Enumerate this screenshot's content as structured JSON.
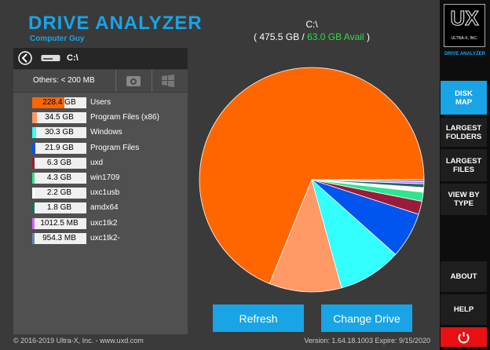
{
  "header": {
    "title": "DRIVE ANALYZER",
    "subtitle": "Computer Guy"
  },
  "drive_bar": {
    "drive": "C:\\"
  },
  "filter_row": {
    "others": "Others: < 200 MB"
  },
  "chart_data": {
    "type": "pie",
    "title": "C:\\",
    "capacity_text": "( 475.5 GB /",
    "available_text": "63.0 GB Avail",
    "close_text": ")",
    "categories": [
      "Users",
      "Program Files (x86)",
      "Windows",
      "Program Files",
      "uxd",
      "win1709",
      "uxc1usb",
      "amdx64",
      "uxc1tk2",
      "uxc1tk2-"
    ],
    "values": [
      228.4,
      34.5,
      30.3,
      21.9,
      6.3,
      4.3,
      2.2,
      1.8,
      0.98877,
      0.93193
    ],
    "value_labels": [
      "228.4 GB",
      "34.5 GB",
      "30.3 GB",
      "21.9 GB",
      "6.3 GB",
      "4.3 GB",
      "2.2 GB",
      "1.8 GB",
      "1012.5 MB",
      "954.3 MB"
    ],
    "colors": [
      "#ff6600",
      "#ff9966",
      "#33ffff",
      "#0055ee",
      "#9b1b3a",
      "#2ee68f",
      "#ffffff",
      "#1a6b5a",
      "#cc66ff",
      "#6688aa"
    ]
  },
  "buttons": {
    "refresh": "Refresh",
    "change_drive": "Change Drive"
  },
  "sidebar": {
    "logo": "UX",
    "logo_company": "ULTRA-X, INC.",
    "product": "DRIVE ANALYZER",
    "nav": [
      "DISK MAP",
      "LARGEST FOLDERS",
      "LARGEST FILES",
      "VIEW BY TYPE",
      "ABOUT",
      "HELP"
    ]
  },
  "footer": {
    "copyright": "© 2016-2019 Ultra-X, Inc. - www.uxd.com",
    "version": "Version: 1.64.18.1003 Expire: 9/15/2020"
  }
}
